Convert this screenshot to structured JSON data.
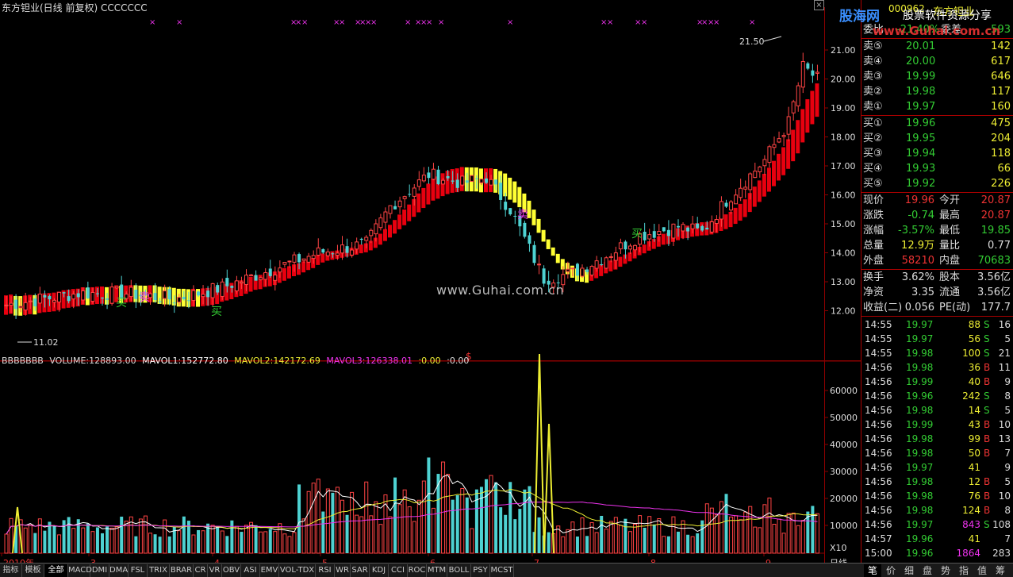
{
  "title": "东方钽业(日线 前复权) CCCCCCC",
  "close_label": "×",
  "price_axis": [
    "21.00",
    "20.00",
    "19.00",
    "18.00",
    "17.00",
    "16.00",
    "15.00",
    "14.00",
    "13.00",
    "12.00"
  ],
  "price_high_label": "21.50",
  "price_low_label": "11.02",
  "signals": {
    "buy": "买",
    "sell": "卖",
    "s_mark": "$"
  },
  "watermark": "www.Guhai.com.cn",
  "volume_legend": {
    "name": "BBBBBBB",
    "volume": "VOLUME:128893.00",
    "mavol1": "MAVOL1:152772.80",
    "mavol2": "MAVOL2:142172.69",
    "mavol3": "MAVOL3:126338.01",
    "extra1": ":0.00",
    "extra2": ":0.00"
  },
  "volume_axis": [
    "60000",
    "50000",
    "40000",
    "30000",
    "20000",
    "10000"
  ],
  "volume_unit": "X10",
  "month_labels": [
    "2010年",
    "3",
    "4",
    "5",
    "6",
    "7",
    "8",
    "9"
  ],
  "period_label": "日线",
  "bottom_tabs": [
    "指标",
    "模板",
    "全部",
    "MACD",
    "DMI",
    "DMA",
    "FSL",
    "TRIX",
    "BRAR",
    "CR",
    "VR",
    "OBV",
    "ASI",
    "EMV",
    "VOL-TDX",
    "RSI",
    "WR",
    "SAR",
    "KDJ",
    "CCI",
    "ROC",
    "MTM",
    "BOLL",
    "PSY",
    "MCST"
  ],
  "panel_tabs": [
    "笔",
    "价",
    "细",
    "盘",
    "势",
    "指",
    "值",
    "筹"
  ],
  "logo": {
    "brand": "股海网",
    "sub": "股票软件资源分享",
    "url": "www.Guhai.com.cn"
  },
  "stock": {
    "code": "000962",
    "name": "东方钽业"
  },
  "weibi": {
    "label": "委比",
    "value": "-21.40%",
    "label2": "委差",
    "value2": "-593"
  },
  "sell": [
    {
      "label": "卖⑤",
      "price": "20.01",
      "vol": "142"
    },
    {
      "label": "卖④",
      "price": "20.00",
      "vol": "617"
    },
    {
      "label": "卖③",
      "price": "19.99",
      "vol": "646"
    },
    {
      "label": "卖②",
      "price": "19.98",
      "vol": "117"
    },
    {
      "label": "卖①",
      "price": "19.97",
      "vol": "160"
    }
  ],
  "buy": [
    {
      "label": "买①",
      "price": "19.96",
      "vol": "475"
    },
    {
      "label": "买②",
      "price": "19.95",
      "vol": "204"
    },
    {
      "label": "买③",
      "price": "19.94",
      "vol": "118"
    },
    {
      "label": "买④",
      "price": "19.93",
      "vol": "66"
    },
    {
      "label": "买⑤",
      "price": "19.92",
      "vol": "226"
    }
  ],
  "quote": [
    {
      "l1": "现价",
      "v1": "19.96",
      "c1": "#e33",
      "l2": "今开",
      "v2": "20.87",
      "c2": "#e33"
    },
    {
      "l1": "涨跌",
      "v1": "-0.74",
      "c1": "#3c3",
      "l2": "最高",
      "v2": "20.87",
      "c2": "#e33"
    },
    {
      "l1": "涨幅",
      "v1": "-3.57%",
      "c1": "#3c3",
      "l2": "最低",
      "v2": "19.85",
      "c2": "#3c3"
    },
    {
      "l1": "总量",
      "v1": "12.9万",
      "c1": "#ee3",
      "l2": "量比",
      "v2": "0.77",
      "c2": "#ddd"
    },
    {
      "l1": "外盘",
      "v1": "58210",
      "c1": "#e33",
      "l2": "内盘",
      "v2": "70683",
      "c2": "#3c3"
    }
  ],
  "stats": [
    {
      "l1": "换手",
      "v1": "3.62%",
      "l2": "股本",
      "v2": "3.56亿"
    },
    {
      "l1": "净资",
      "v1": "3.35",
      "l2": "流通",
      "v2": "3.56亿"
    },
    {
      "l1": "收益(二)",
      "v1": "0.056",
      "l2": "PE(动)",
      "v2": "177.7"
    }
  ],
  "ticks": [
    {
      "t": "14:55",
      "p": "19.97",
      "v": "88",
      "bs": "S",
      "n": "16"
    },
    {
      "t": "14:55",
      "p": "19.97",
      "v": "56",
      "bs": "S",
      "n": "5"
    },
    {
      "t": "14:55",
      "p": "19.98",
      "v": "100",
      "bs": "S",
      "n": "21"
    },
    {
      "t": "14:56",
      "p": "19.98",
      "v": "36",
      "bs": "B",
      "n": "11"
    },
    {
      "t": "14:56",
      "p": "19.99",
      "v": "40",
      "bs": "B",
      "n": "9"
    },
    {
      "t": "14:56",
      "p": "19.96",
      "v": "242",
      "bs": "S",
      "n": "8"
    },
    {
      "t": "14:56",
      "p": "19.98",
      "v": "14",
      "bs": "S",
      "n": "5"
    },
    {
      "t": "14:56",
      "p": "19.99",
      "v": "43",
      "bs": "B",
      "n": "10"
    },
    {
      "t": "14:56",
      "p": "19.98",
      "v": "99",
      "bs": "B",
      "n": "13"
    },
    {
      "t": "14:56",
      "p": "19.98",
      "v": "50",
      "bs": "B",
      "n": "7"
    },
    {
      "t": "14:56",
      "p": "19.97",
      "v": "41",
      "bs": "",
      "n": "9"
    },
    {
      "t": "14:56",
      "p": "19.98",
      "v": "12",
      "bs": "B",
      "n": "5"
    },
    {
      "t": "14:56",
      "p": "19.98",
      "v": "76",
      "bs": "B",
      "n": "10"
    },
    {
      "t": "14:56",
      "p": "19.98",
      "v": "124",
      "bs": "B",
      "n": "8"
    },
    {
      "t": "14:56",
      "p": "19.97",
      "v": "843",
      "bs": "S",
      "n": "108"
    },
    {
      "t": "14:57",
      "p": "19.96",
      "v": "41",
      "bs": "",
      "n": "7"
    },
    {
      "t": "15:00",
      "p": "19.96",
      "v": "1864",
      "bs": "",
      "n": "283"
    }
  ],
  "colors": {
    "up": "#ff4444",
    "down": "#4ed2d2",
    "band_red": "#e8000f",
    "band_yellow": "#ffff33",
    "grid": "#8b0000"
  }
}
